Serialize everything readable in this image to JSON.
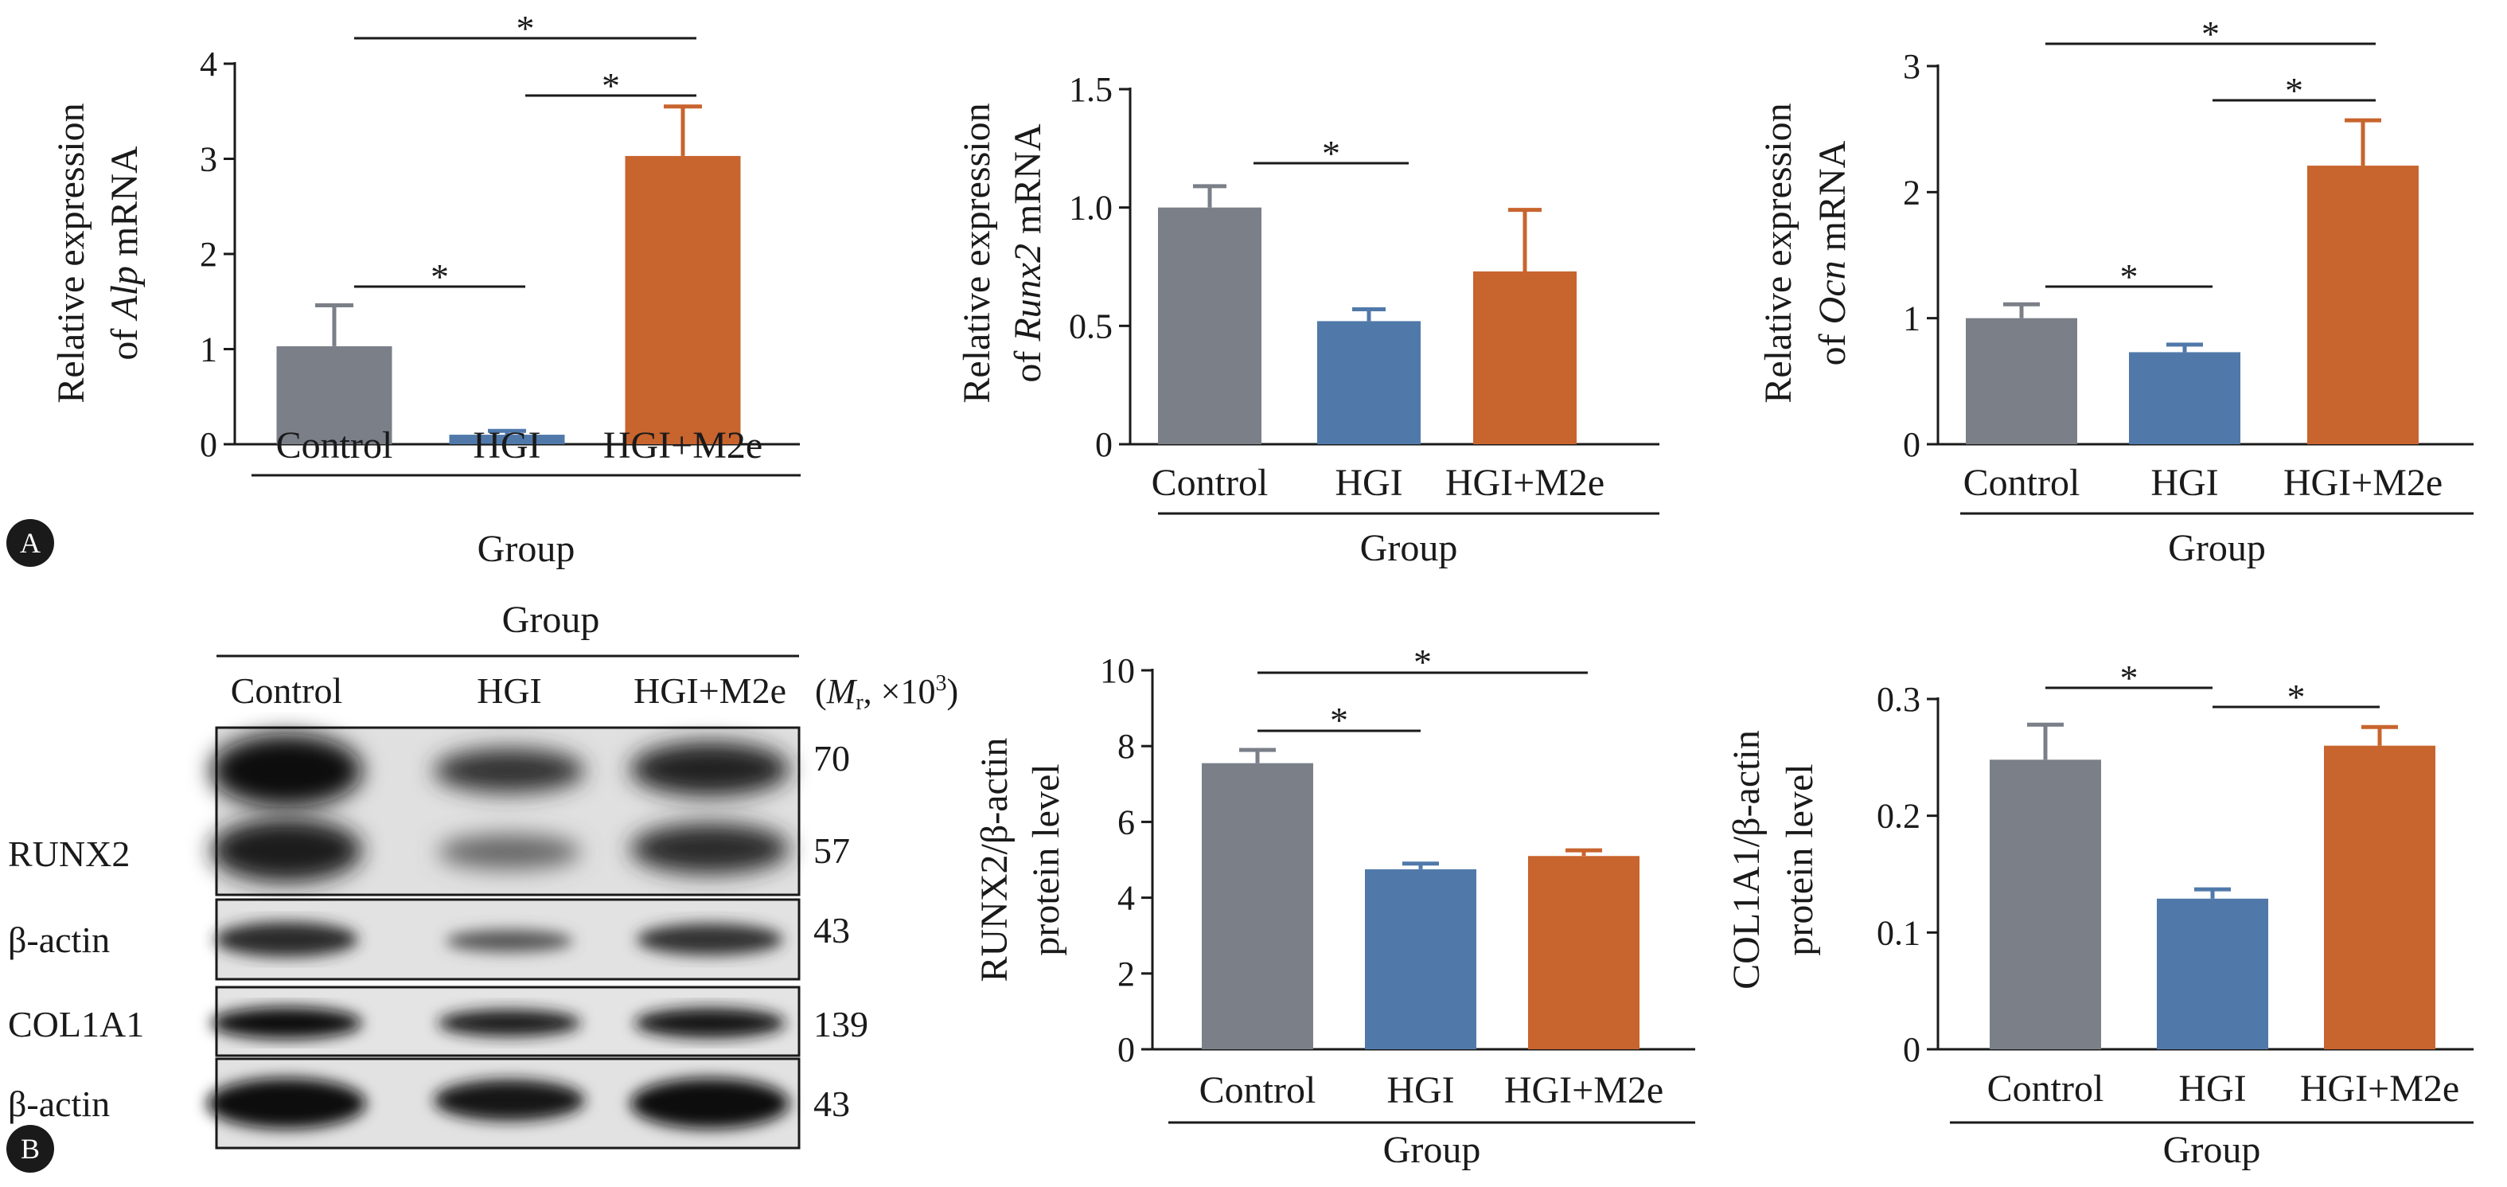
{
  "panel_labels": [
    "A",
    "B"
  ],
  "group_label": "Group",
  "colors": {
    "Control": "#7a7f88",
    "HGI": "#5079aa",
    "HGI+M2e": "#c8642e",
    "axis": "#1a1a1a"
  },
  "western_blot": {
    "header": "Group",
    "lanes": [
      "Control",
      "HGI",
      "HGI+M2e"
    ],
    "mw_header": "(Mr, ×10³)",
    "rows": [
      {
        "protein": "RUNX2",
        "mw": [
          "70",
          "57"
        ]
      },
      {
        "protein": "β-actin",
        "mw": [
          "43"
        ]
      },
      {
        "protein": "COL1A1",
        "mw": [
          "139"
        ]
      },
      {
        "protein": "β-actin",
        "mw": [
          "43"
        ]
      }
    ]
  },
  "chart_data": [
    {
      "type": "bar",
      "panel": "A",
      "categories": [
        "Control",
        "HGI",
        "HGI+M2e"
      ],
      "values": [
        1.03,
        0.1,
        3.03
      ],
      "errors": [
        0.43,
        0.04,
        0.52
      ],
      "ylabel": [
        "Relative expression",
        "of Alp mRNA"
      ],
      "xlabel": "Group",
      "yticks": [
        "0",
        "1",
        "2",
        "3",
        "4"
      ],
      "ylim": [
        0,
        4
      ],
      "significance": [
        {
          "from": "Control",
          "to": "HGI",
          "label": "*"
        },
        {
          "from": "HGI",
          "to": "HGI+M2e",
          "label": "*"
        },
        {
          "from": "Control",
          "to": "HGI+M2e",
          "label": "*"
        }
      ]
    },
    {
      "type": "bar",
      "panel": "A",
      "categories": [
        "Control",
        "HGI",
        "HGI+M2e"
      ],
      "values": [
        1.0,
        0.52,
        0.73
      ],
      "errors": [
        0.09,
        0.05,
        0.26
      ],
      "ylabel": [
        "Relative expression",
        "of Runx2 mRNA"
      ],
      "xlabel": "Group",
      "yticks": [
        "0",
        "0.5",
        "1.0",
        "1.5"
      ],
      "ylim": [
        0,
        1.5
      ],
      "significance": [
        {
          "from": "Control",
          "to": "HGI",
          "label": "*"
        }
      ]
    },
    {
      "type": "bar",
      "panel": "A",
      "categories": [
        "Control",
        "HGI",
        "HGI+M2e"
      ],
      "values": [
        1.0,
        0.73,
        2.21
      ],
      "errors": [
        0.11,
        0.06,
        0.36
      ],
      "ylabel": [
        "Relative expression",
        "of Ocn mRNA"
      ],
      "xlabel": "Group",
      "yticks": [
        "0",
        "1",
        "2",
        "3"
      ],
      "ylim": [
        0,
        3
      ],
      "significance": [
        {
          "from": "Control",
          "to": "HGI",
          "label": "*"
        },
        {
          "from": "HGI",
          "to": "HGI+M2e",
          "label": "*"
        },
        {
          "from": "Control",
          "to": "HGI+M2e",
          "label": "*"
        }
      ]
    },
    {
      "type": "bar",
      "panel": "B",
      "categories": [
        "Control",
        "HGI",
        "HGI+M2e"
      ],
      "values": [
        7.55,
        4.75,
        5.1
      ],
      "errors": [
        0.35,
        0.15,
        0.15
      ],
      "ylabel": [
        "RUNX2/β-actin",
        "protein level"
      ],
      "xlabel": "Group",
      "yticks": [
        "0",
        "2",
        "4",
        "6",
        "8",
        "10"
      ],
      "ylim": [
        0,
        10
      ],
      "significance": [
        {
          "from": "Control",
          "to": "HGI",
          "label": "*"
        },
        {
          "from": "Control",
          "to": "HGI+M2e",
          "label": "*"
        }
      ]
    },
    {
      "type": "bar",
      "panel": "B",
      "categories": [
        "Control",
        "HGI",
        "HGI+M2e"
      ],
      "values": [
        0.248,
        0.129,
        0.26
      ],
      "errors": [
        0.03,
        0.008,
        0.016
      ],
      "ylabel": [
        "COL1A1/β-actin",
        "protein level"
      ],
      "xlabel": "Group",
      "yticks": [
        "0",
        "0.1",
        "0.2",
        "0.3"
      ],
      "ylim": [
        0,
        0.3
      ],
      "significance": [
        {
          "from": "Control",
          "to": "HGI",
          "label": "*"
        },
        {
          "from": "HGI",
          "to": "HGI+M2e",
          "label": "*"
        }
      ]
    }
  ]
}
